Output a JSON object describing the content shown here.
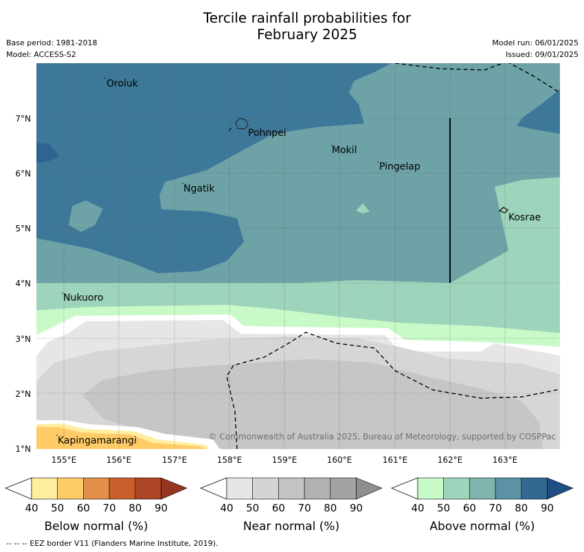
{
  "title_line1": "Tercile rainfall probabilities for",
  "title_line2": "February 2025",
  "meta": {
    "base_period": "Base period: 1981-2018",
    "model": "Model: ACCESS-S2",
    "model_run": "Model run: 06/01/2025",
    "issued": "Issued: 09/01/2025"
  },
  "map": {
    "lat_ticks": [
      "7°N",
      "6°N",
      "5°N",
      "4°N",
      "3°N",
      "2°N",
      "1°N"
    ],
    "lon_ticks": [
      "155°E",
      "156°E",
      "157°E",
      "158°E",
      "159°E",
      "160°E",
      "161°E",
      "162°E",
      "163°E"
    ],
    "places": [
      "Oroluk",
      "Pohnpei",
      "Mokil",
      "Pingelap",
      "Ngatik",
      "Kosrae",
      "Nukuoro",
      "Kapingamarangi"
    ],
    "copyright": "© Commonwealth of Australia 2025, Bureau of Meteorology, supported by COSPPac"
  },
  "legends": [
    {
      "title": "Below normal (%)",
      "ticks": [
        "40",
        "50",
        "60",
        "70",
        "80",
        "90"
      ],
      "colors": [
        "#ffeda0",
        "#fecb67",
        "#e0904a",
        "#ca5f2d",
        "#ad4624",
        "#993420"
      ]
    },
    {
      "title": "Near normal (%)",
      "ticks": [
        "40",
        "50",
        "60",
        "70",
        "80",
        "90"
      ],
      "colors": [
        "#e6e6e6",
        "#d4d4d4",
        "#c4c4c4",
        "#b2b2b2",
        "#a2a2a2",
        "#8e8e8e"
      ]
    },
    {
      "title": "Above normal (%)",
      "ticks": [
        "40",
        "50",
        "60",
        "70",
        "80",
        "90"
      ],
      "colors": [
        "#c8fac8",
        "#9ed4bb",
        "#7fb5ae",
        "#5b93a6",
        "#336891",
        "#1f4e85"
      ]
    }
  ],
  "footer": "--  --  -- EEZ border V11 (Flanders Marine Institute, 2019)."
}
